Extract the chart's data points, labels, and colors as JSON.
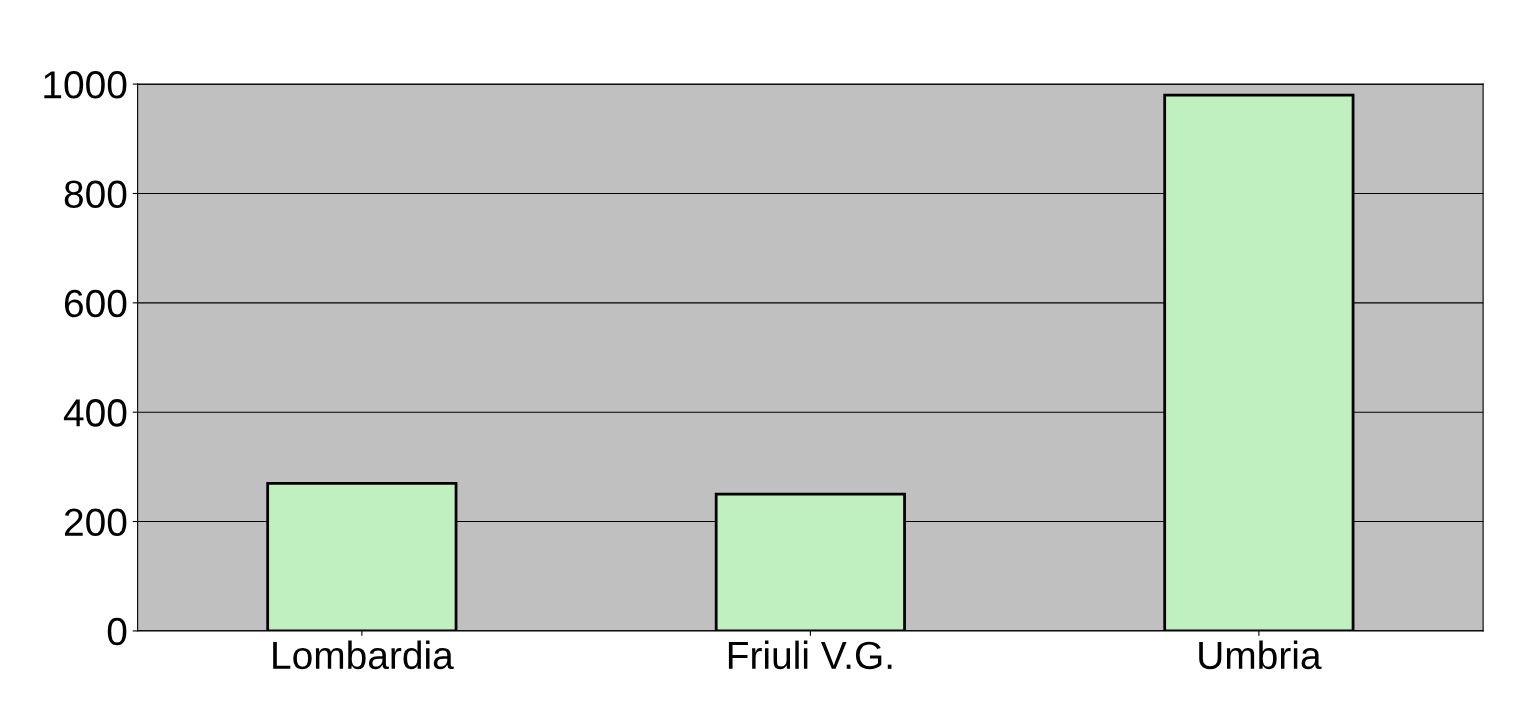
{
  "chart_data": {
    "type": "bar",
    "categories": [
      "Lombardia",
      "Friuli V.G.",
      "Umbria"
    ],
    "values": [
      270,
      250,
      980
    ],
    "color": "#c0f0c0",
    "ylim": [
      0,
      1000
    ],
    "yticks": [
      0,
      200,
      400,
      600,
      800,
      1000
    ],
    "grid": "y",
    "legend": false
  }
}
